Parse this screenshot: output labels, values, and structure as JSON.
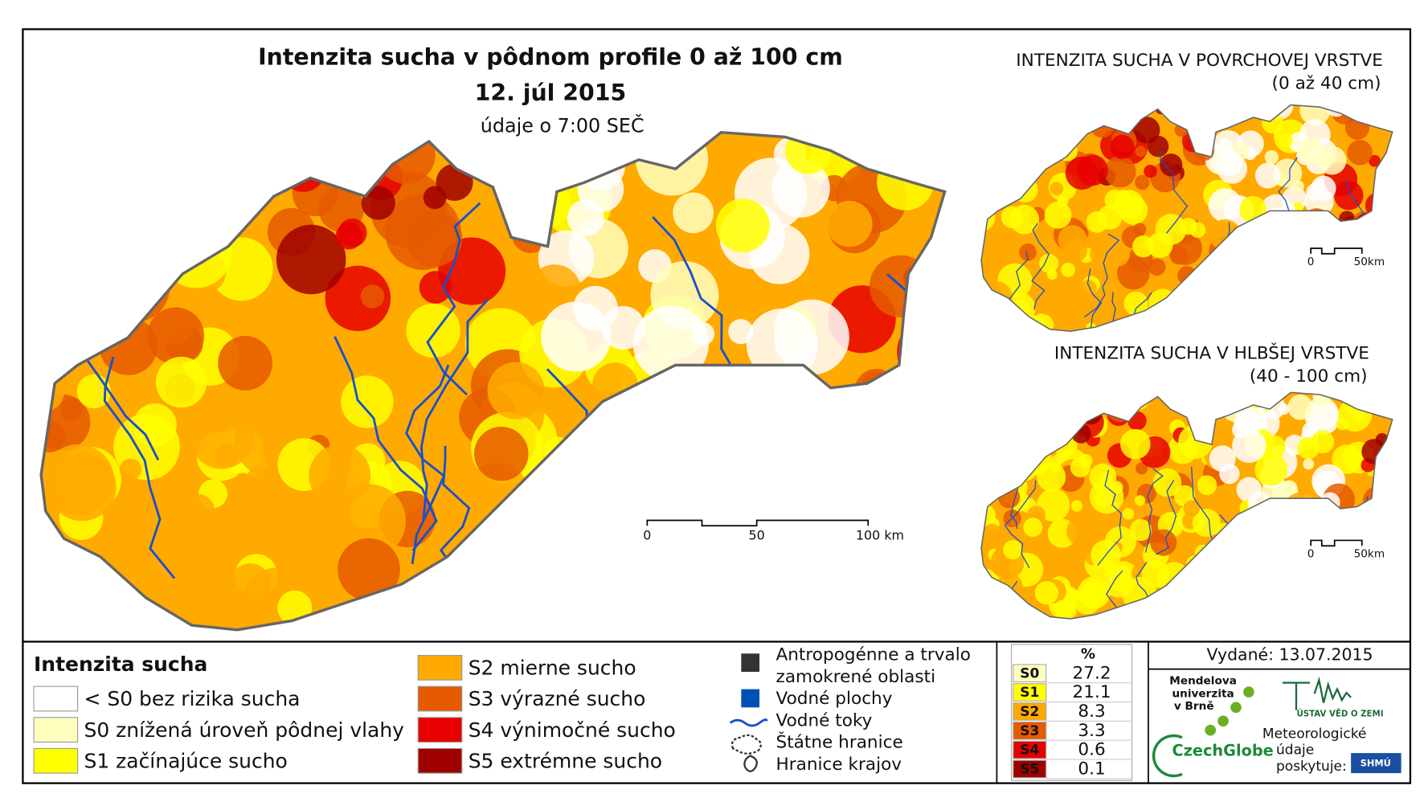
{
  "main_map": {
    "title": "Intenzita sucha v pôdnom profile 0 až 100 cm",
    "date": "12. júl 2015",
    "subtitle": "údaje o 7:00 SEČ",
    "scale": [
      "0",
      "50",
      "100 km"
    ]
  },
  "inset_top": {
    "title": "INTENZITA SUCHA V POVRCHOVEJ VRSTVE",
    "subtitle": "(0 až 40 cm)",
    "scale": [
      "0",
      "50km"
    ]
  },
  "inset_bottom": {
    "title": "INTENZITA SUCHA V HLBŠEJ VRSTVE",
    "subtitle": "(40 - 100 cm)",
    "scale": [
      "0",
      "50km"
    ]
  },
  "legend": {
    "title": "Intenzita sucha",
    "classes": [
      {
        "label": "< S0 bez rizika sucha",
        "color": "#ffffff"
      },
      {
        "label": "S0 znížená úroveň pôdnej vlahy",
        "color": "#ffffc0"
      },
      {
        "label": "S1 začínajúce sucho",
        "color": "#ffff00"
      },
      {
        "label": "S2 mierne sucho",
        "color": "#ffaa00"
      },
      {
        "label": "S3 výrazné sucho",
        "color": "#e65a00"
      },
      {
        "label": "S4 výnimočné sucho",
        "color": "#e60000"
      },
      {
        "label": "S5 extrémne sucho",
        "color": "#a00000"
      }
    ]
  },
  "symbols": [
    [
      "Antropogénne a trvalo",
      "zamokrené oblasti"
    ],
    [
      "Vodné plochy"
    ],
    [
      "Vodné toky"
    ],
    [
      "Štátne hranice"
    ],
    [
      "Hranice krajov"
    ]
  ],
  "stats": {
    "header": "%",
    "rows": [
      {
        "code": "S0",
        "value": 27.2
      },
      {
        "code": "S1",
        "value": 21.1
      },
      {
        "code": "S2",
        "value": 8.3
      },
      {
        "code": "S3",
        "value": 3.3
      },
      {
        "code": "S4",
        "value": 0.6
      },
      {
        "code": "S5",
        "value": 0.1
      }
    ]
  },
  "issued": "Vydané: 13.07.2015",
  "logos": {
    "mendel": [
      "Mendelova",
      "univerzita",
      "v Brně"
    ],
    "czechglobe": "CzechGlobe",
    "ustav": "ÚSTAV VĚD O ZEMI",
    "meteo": [
      "Meteorologické",
      "údaje",
      "poskytuje:"
    ],
    "shmu": "SHMÚ"
  }
}
